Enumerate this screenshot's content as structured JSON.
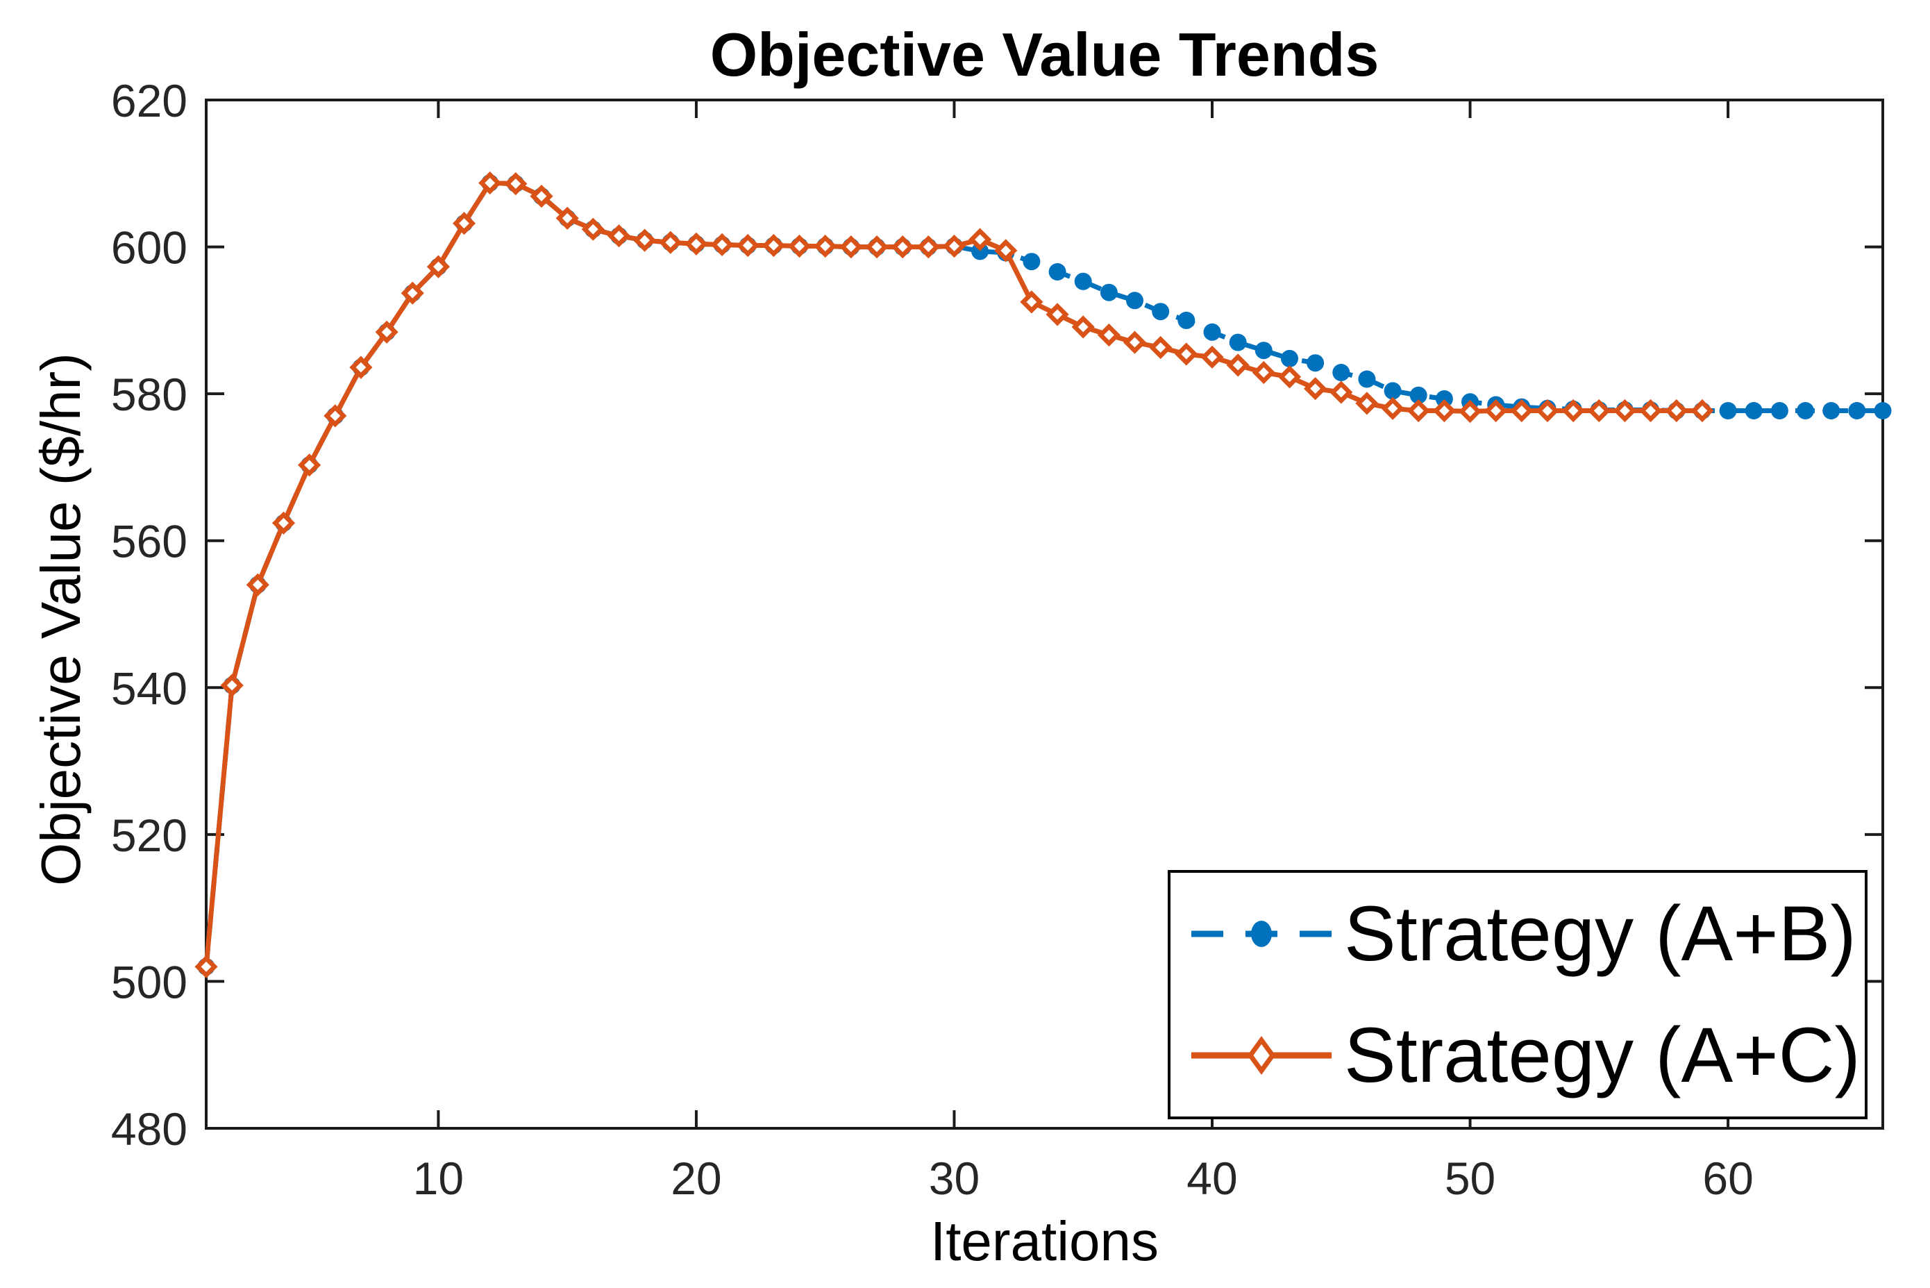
{
  "figure": {
    "background": "#ffffff",
    "axes_color": "#1a1a1a",
    "tick_label_color": "#262626"
  },
  "chart_data": {
    "type": "line",
    "title": "Objective Value Trends",
    "xlabel": "Iterations",
    "ylabel": "Objective Value ($/hr)",
    "xlim": [
      1,
      66
    ],
    "ylim": [
      480,
      620
    ],
    "x_ticks": [
      10,
      20,
      30,
      40,
      50,
      60
    ],
    "y_ticks": [
      480,
      500,
      520,
      540,
      560,
      580,
      600,
      620
    ],
    "grid": false,
    "legend_position": "lower-right",
    "series": [
      {
        "name": "Strategy (A+B)",
        "color": "#0072BD",
        "line_style": "dashed",
        "marker": "filled-circle",
        "x_start": 1,
        "values": [
          502.0,
          540.3,
          554.0,
          562.4,
          570.3,
          577.0,
          583.6,
          588.4,
          593.7,
          597.3,
          603.2,
          608.7,
          608.6,
          606.9,
          603.9,
          602.4,
          601.5,
          600.9,
          600.6,
          600.4,
          600.3,
          600.2,
          600.2,
          600.1,
          600.1,
          600.0,
          600.0,
          600.0,
          600.0,
          600.1,
          599.4,
          599.2,
          598.0,
          596.6,
          595.3,
          593.8,
          592.7,
          591.2,
          590.0,
          588.4,
          587.0,
          585.9,
          584.8,
          584.2,
          582.9,
          582.0,
          580.4,
          579.8,
          579.3,
          578.9,
          578.5,
          578.2,
          578.0,
          577.9,
          577.8,
          577.8,
          577.8,
          577.7,
          577.7,
          577.7,
          577.7,
          577.7,
          577.7,
          577.7,
          577.7,
          577.7
        ]
      },
      {
        "name": "Strategy (A+C)",
        "color": "#D95319",
        "line_style": "solid",
        "marker": "open-diamond",
        "x_start": 1,
        "values": [
          502.0,
          540.3,
          554.0,
          562.4,
          570.3,
          577.0,
          583.6,
          588.4,
          593.7,
          597.3,
          603.2,
          608.7,
          608.6,
          606.9,
          603.9,
          602.4,
          601.5,
          600.9,
          600.6,
          600.4,
          600.3,
          600.2,
          600.2,
          600.1,
          600.1,
          600.0,
          600.0,
          600.0,
          600.0,
          600.1,
          601.0,
          599.5,
          592.5,
          590.8,
          589.1,
          588.0,
          587.0,
          586.3,
          585.4,
          585.0,
          583.9,
          582.9,
          582.3,
          580.7,
          580.2,
          578.7,
          578.0,
          577.7,
          577.7,
          577.6,
          577.7,
          577.7,
          577.7,
          577.7,
          577.7,
          577.7,
          577.7,
          577.7,
          577.7
        ]
      }
    ]
  }
}
